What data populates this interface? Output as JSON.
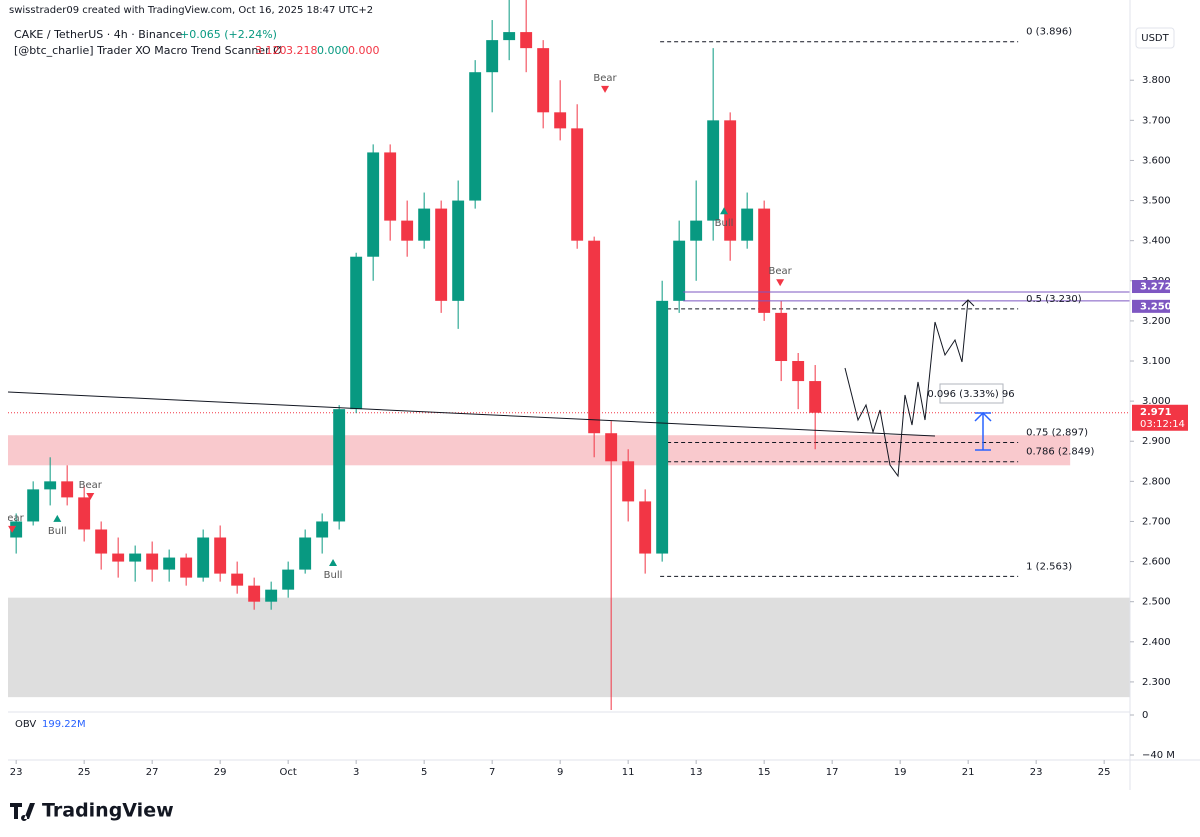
{
  "header": {
    "author": "swisstrader09 created with TradingView.com, Oct 16, 2025 18:47 UTC+2",
    "logo": "TradingView",
    "currency": "USDT"
  },
  "chart_data": {
    "type": "candlestick",
    "title": "CAKE / TetherUS · 4h · Binance",
    "change": "+0.065 (+2.24%)",
    "change_color": "#089981",
    "indicator": {
      "name": "[@btc_charlie] Trader XO Macro Trend Scanner Ø",
      "values": [
        {
          "value": 3.12,
          "label": "3.120",
          "color": "#f23645"
        },
        {
          "value": 3.218,
          "label": "3.218",
          "color": "#f23645"
        },
        {
          "value": 0,
          "label": "0.000",
          "color": "#089981"
        },
        {
          "value": 0,
          "label": "0.000",
          "color": "#f23645"
        }
      ]
    },
    "up_color": "#089981",
    "down_color": "#f23645",
    "xlim": [
      -0.24,
      32.76
    ],
    "xticks": [
      {
        "value": 0,
        "label": "23"
      },
      {
        "value": 2,
        "label": "25"
      },
      {
        "value": 4,
        "label": "27"
      },
      {
        "value": 6,
        "label": "29"
      },
      {
        "value": 8,
        "label": "Oct"
      },
      {
        "value": 10,
        "label": "3"
      },
      {
        "value": 12,
        "label": "5"
      },
      {
        "value": 14,
        "label": "7"
      },
      {
        "value": 16,
        "label": "9"
      },
      {
        "value": 18,
        "label": "11"
      },
      {
        "value": 20,
        "label": "13"
      },
      {
        "value": 22,
        "label": "15"
      },
      {
        "value": 24,
        "label": "17"
      },
      {
        "value": 26,
        "label": "19"
      },
      {
        "value": 28,
        "label": "21"
      },
      {
        "value": 30,
        "label": "23"
      },
      {
        "value": 32,
        "label": "25"
      }
    ],
    "ylim": [
      2.225,
      4.0
    ],
    "yticks": [
      {
        "value": 2.3,
        "label": "2.300"
      },
      {
        "value": 2.4,
        "label": "2.400"
      },
      {
        "value": 2.5,
        "label": "2.500"
      },
      {
        "value": 2.6,
        "label": "2.600"
      },
      {
        "value": 2.7,
        "label": "2.700"
      },
      {
        "value": 2.8,
        "label": "2.800"
      },
      {
        "value": 2.9,
        "label": "2.900"
      },
      {
        "value": 3.0,
        "label": "3.000"
      },
      {
        "value": 3.1,
        "label": "3.100"
      },
      {
        "value": 3.2,
        "label": "3.200"
      },
      {
        "value": 3.3,
        "label": "3.300"
      },
      {
        "value": 3.4,
        "label": "3.400"
      },
      {
        "value": 3.5,
        "label": "3.500"
      },
      {
        "value": 3.6,
        "label": "3.600"
      },
      {
        "value": 3.7,
        "label": "3.700"
      },
      {
        "value": 3.8,
        "label": "3.800"
      }
    ],
    "candles": [
      {
        "x": 0,
        "open": 2.66,
        "high": 2.72,
        "low": 2.62,
        "close": 2.7
      },
      {
        "x": 0.5,
        "open": 2.7,
        "high": 2.8,
        "low": 2.69,
        "close": 2.78
      },
      {
        "x": 1,
        "open": 2.78,
        "high": 2.86,
        "low": 2.74,
        "close": 2.8
      },
      {
        "x": 1.5,
        "open": 2.8,
        "high": 2.84,
        "low": 2.74,
        "close": 2.76
      },
      {
        "x": 2,
        "open": 2.76,
        "high": 2.79,
        "low": 2.65,
        "close": 2.68
      },
      {
        "x": 2.5,
        "open": 2.68,
        "high": 2.7,
        "low": 2.58,
        "close": 2.62
      },
      {
        "x": 3,
        "open": 2.62,
        "high": 2.66,
        "low": 2.56,
        "close": 2.6
      },
      {
        "x": 3.5,
        "open": 2.6,
        "high": 2.64,
        "low": 2.55,
        "close": 2.62
      },
      {
        "x": 4,
        "open": 2.62,
        "high": 2.65,
        "low": 2.55,
        "close": 2.58
      },
      {
        "x": 4.5,
        "open": 2.58,
        "high": 2.63,
        "low": 2.55,
        "close": 2.61
      },
      {
        "x": 5,
        "open": 2.61,
        "high": 2.62,
        "low": 2.54,
        "close": 2.56
      },
      {
        "x": 5.5,
        "open": 2.56,
        "high": 2.68,
        "low": 2.55,
        "close": 2.66
      },
      {
        "x": 6,
        "open": 2.66,
        "high": 2.69,
        "low": 2.55,
        "close": 2.57
      },
      {
        "x": 6.5,
        "open": 2.57,
        "high": 2.6,
        "low": 2.52,
        "close": 2.54
      },
      {
        "x": 7,
        "open": 2.54,
        "high": 2.56,
        "low": 2.48,
        "close": 2.5
      },
      {
        "x": 7.5,
        "open": 2.5,
        "high": 2.55,
        "low": 2.48,
        "close": 2.53
      },
      {
        "x": 8,
        "open": 2.53,
        "high": 2.6,
        "low": 2.51,
        "close": 2.58
      },
      {
        "x": 8.5,
        "open": 2.58,
        "high": 2.68,
        "low": 2.57,
        "close": 2.66
      },
      {
        "x": 9,
        "open": 2.66,
        "high": 2.72,
        "low": 2.62,
        "close": 2.7
      },
      {
        "x": 9.5,
        "open": 2.7,
        "high": 2.99,
        "low": 2.68,
        "close": 2.98
      },
      {
        "x": 10,
        "open": 2.98,
        "high": 3.37,
        "low": 2.97,
        "close": 3.36
      },
      {
        "x": 10.5,
        "open": 3.36,
        "high": 3.64,
        "low": 3.3,
        "close": 3.62
      },
      {
        "x": 11,
        "open": 3.62,
        "high": 3.64,
        "low": 3.4,
        "close": 3.45
      },
      {
        "x": 11.5,
        "open": 3.45,
        "high": 3.5,
        "low": 3.36,
        "close": 3.4
      },
      {
        "x": 12,
        "open": 3.4,
        "high": 3.52,
        "low": 3.38,
        "close": 3.48
      },
      {
        "x": 12.5,
        "open": 3.48,
        "high": 3.5,
        "low": 3.22,
        "close": 3.25
      },
      {
        "x": 13,
        "open": 3.25,
        "high": 3.55,
        "low": 3.18,
        "close": 3.5
      },
      {
        "x": 13.5,
        "open": 3.5,
        "high": 3.85,
        "low": 3.48,
        "close": 3.82
      },
      {
        "x": 14,
        "open": 3.82,
        "high": 3.95,
        "low": 3.72,
        "close": 3.9
      },
      {
        "x": 14.5,
        "open": 3.9,
        "high": 4.0,
        "low": 3.85,
        "close": 3.92
      },
      {
        "x": 15,
        "open": 3.92,
        "high": 4.0,
        "low": 3.82,
        "close": 3.88
      },
      {
        "x": 15.5,
        "open": 3.88,
        "high": 3.9,
        "low": 3.68,
        "close": 3.72
      },
      {
        "x": 16,
        "open": 3.72,
        "high": 3.8,
        "low": 3.65,
        "close": 3.68
      },
      {
        "x": 16.5,
        "open": 3.68,
        "high": 3.74,
        "low": 3.38,
        "close": 3.4
      },
      {
        "x": 17,
        "open": 3.4,
        "high": 3.41,
        "low": 2.86,
        "close": 2.92
      },
      {
        "x": 17.5,
        "open": 2.92,
        "high": 2.95,
        "low": 2.23,
        "close": 2.85
      },
      {
        "x": 18,
        "open": 2.85,
        "high": 2.88,
        "low": 2.7,
        "close": 2.75
      },
      {
        "x": 18.5,
        "open": 2.75,
        "high": 2.78,
        "low": 2.57,
        "close": 2.62
      },
      {
        "x": 19,
        "open": 2.62,
        "high": 3.3,
        "low": 2.6,
        "close": 3.25
      },
      {
        "x": 19.5,
        "open": 3.25,
        "high": 3.45,
        "low": 3.22,
        "close": 3.4
      },
      {
        "x": 20,
        "open": 3.4,
        "high": 3.55,
        "low": 3.3,
        "close": 3.45
      },
      {
        "x": 20.5,
        "open": 3.45,
        "high": 3.88,
        "low": 3.4,
        "close": 3.7
      },
      {
        "x": 21,
        "open": 3.7,
        "high": 3.72,
        "low": 3.35,
        "close": 3.4
      },
      {
        "x": 21.5,
        "open": 3.4,
        "high": 3.52,
        "low": 3.38,
        "close": 3.48
      },
      {
        "x": 22,
        "open": 3.48,
        "high": 3.5,
        "low": 3.2,
        "close": 3.22
      },
      {
        "x": 22.5,
        "open": 3.22,
        "high": 3.25,
        "low": 3.05,
        "close": 3.1
      },
      {
        "x": 23,
        "open": 3.1,
        "high": 3.12,
        "low": 2.98,
        "close": 3.05
      },
      {
        "x": 23.5,
        "open": 3.05,
        "high": 3.09,
        "low": 2.88,
        "close": 2.971
      }
    ],
    "signals": [
      {
        "label": "Bear",
        "x": -0.12,
        "price": 2.679
      },
      {
        "label": "Bull",
        "x": 1.21,
        "price": 2.709
      },
      {
        "label": "Bear",
        "x": 2.18,
        "price": 2.761
      },
      {
        "label": "Bull",
        "x": 9.32,
        "price": 2.599
      },
      {
        "label": "Bear",
        "x": 17.32,
        "price": 3.776
      },
      {
        "label": "Bull",
        "x": 20.82,
        "price": 3.476
      },
      {
        "label": "Bear",
        "x": 22.47,
        "price": 3.294
      }
    ],
    "zones": [
      {
        "low": 2.84,
        "high": 2.915,
        "end": 31,
        "color": "#f9c9cd"
      },
      {
        "low": 2.262,
        "high": 2.51,
        "color": "#dedede"
      }
    ],
    "fib": {
      "start": 18.94,
      "end": 29.47,
      "levels": [
        {
          "value": 3.896,
          "label": "0 (3.896)"
        },
        {
          "value": 3.23,
          "label": "0.5 (3.230)"
        },
        {
          "value": 2.897,
          "label": "0.75 (2.897)"
        },
        {
          "value": 2.849,
          "label": "0.786 (2.849)"
        },
        {
          "value": 2.563,
          "label": "1 (2.563)"
        }
      ]
    },
    "levels": {
      "start": 19.62,
      "color": "#7e57c2",
      "items": [
        {
          "value": 3.272,
          "label": "3.272"
        },
        {
          "value": 3.25,
          "label": "3.250"
        }
      ]
    },
    "last_price": {
      "value": 2.971,
      "label": "2.971",
      "countdown": "03:12:14",
      "color": "#f23645"
    },
    "measure": "0.096 (3.33%) 96",
    "obv": {
      "name": "OBV",
      "value": "199.22M",
      "ylim": [
        -45,
        3
      ],
      "yticks": [
        0,
        {
          "value": -40,
          "label": "−40 M"
        }
      ]
    }
  }
}
